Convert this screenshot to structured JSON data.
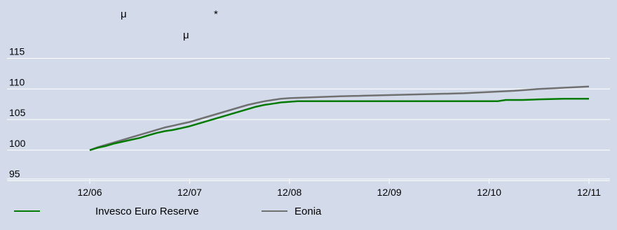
{
  "header_fragments": [
    "μ",
    "*",
    "μ"
  ],
  "chart_data": {
    "type": "line",
    "title": "",
    "xlabel": "",
    "ylabel": "",
    "x_ticks": [
      "12/06",
      "12/07",
      "12/08",
      "12/09",
      "12/10",
      "12/11"
    ],
    "y_ticks": [
      95,
      100,
      105,
      110,
      115
    ],
    "ylim": [
      93,
      117
    ],
    "grid": "horizontal",
    "legend_placement": "bottom",
    "series": [
      {
        "name": "Invesco Euro Reserve",
        "color": "#007a00",
        "points": [
          [
            "12/06",
            100.0
          ],
          [
            "01/07",
            100.4
          ],
          [
            "02/07",
            100.7
          ],
          [
            "03/07",
            101.1
          ],
          [
            "04/07",
            101.4
          ],
          [
            "05/07",
            101.7
          ],
          [
            "06/07",
            102.0
          ],
          [
            "07/07",
            102.4
          ],
          [
            "08/07",
            102.8
          ],
          [
            "09/07",
            103.1
          ],
          [
            "10/07",
            103.3
          ],
          [
            "11/07",
            103.6
          ],
          [
            "12/07",
            103.9
          ],
          [
            "01/08",
            104.3
          ],
          [
            "02/08",
            104.7
          ],
          [
            "03/08",
            105.1
          ],
          [
            "04/08",
            105.5
          ],
          [
            "05/08",
            105.9
          ],
          [
            "06/08",
            106.3
          ],
          [
            "07/08",
            106.7
          ],
          [
            "08/08",
            107.1
          ],
          [
            "09/08",
            107.4
          ],
          [
            "10/08",
            107.6
          ],
          [
            "11/08",
            107.8
          ],
          [
            "12/08",
            107.9
          ],
          [
            "01/09",
            108.0
          ],
          [
            "06/09",
            108.0
          ],
          [
            "12/09",
            108.0
          ],
          [
            "06/10",
            108.0
          ],
          [
            "12/10",
            108.0
          ],
          [
            "01/11",
            108.0
          ],
          [
            "02/11",
            108.2
          ],
          [
            "04/11",
            108.2
          ],
          [
            "06/11",
            108.3
          ],
          [
            "09/11",
            108.4
          ],
          [
            "12/11",
            108.4
          ]
        ]
      },
      {
        "name": "Eonia",
        "color": "#707070",
        "points": [
          [
            "12/06",
            100.0
          ],
          [
            "01/07",
            100.5
          ],
          [
            "02/07",
            100.9
          ],
          [
            "03/07",
            101.3
          ],
          [
            "04/07",
            101.7
          ],
          [
            "05/07",
            102.1
          ],
          [
            "06/07",
            102.5
          ],
          [
            "07/07",
            102.9
          ],
          [
            "08/07",
            103.3
          ],
          [
            "09/07",
            103.7
          ],
          [
            "10/07",
            104.0
          ],
          [
            "11/07",
            104.3
          ],
          [
            "12/07",
            104.6
          ],
          [
            "01/08",
            105.0
          ],
          [
            "02/08",
            105.4
          ],
          [
            "03/08",
            105.8
          ],
          [
            "04/08",
            106.2
          ],
          [
            "05/08",
            106.6
          ],
          [
            "06/08",
            107.0
          ],
          [
            "07/08",
            107.4
          ],
          [
            "08/08",
            107.7
          ],
          [
            "09/08",
            108.0
          ],
          [
            "10/08",
            108.2
          ],
          [
            "11/08",
            108.4
          ],
          [
            "12/08",
            108.5
          ],
          [
            "02/09",
            108.6
          ],
          [
            "04/09",
            108.7
          ],
          [
            "06/09",
            108.8
          ],
          [
            "09/09",
            108.9
          ],
          [
            "12/09",
            109.0
          ],
          [
            "03/10",
            109.1
          ],
          [
            "06/10",
            109.2
          ],
          [
            "09/10",
            109.3
          ],
          [
            "12/10",
            109.5
          ],
          [
            "03/11",
            109.7
          ],
          [
            "06/11",
            110.0
          ],
          [
            "09/11",
            110.2
          ],
          [
            "12/11",
            110.4
          ]
        ]
      }
    ]
  }
}
